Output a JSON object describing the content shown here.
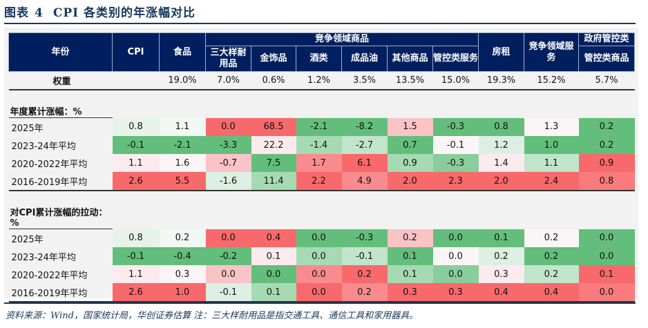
{
  "title": {
    "label": "图表",
    "number": "4",
    "text": "CPI 各类别的年涨幅对比"
  },
  "header": {
    "year": "年份",
    "cpi": "CPI",
    "food": "食品",
    "group_competitive_goods": "竞争领域商品",
    "durables": "三大样耐用品",
    "gold": "金饰品",
    "liquor": "酒类",
    "fuel": "成品油",
    "other_goods": "其他商品",
    "rent": "房租",
    "competitive_services": "竞争领域服务",
    "group_government": "政府管控类",
    "controlled_services": "管控类服务",
    "controlled_goods": "管控类商品"
  },
  "weight": {
    "label": "权重",
    "values": [
      "",
      "19.0%",
      "7.0%",
      "0.6%",
      "1.2%",
      "3.5%",
      "13.5%",
      "15.0%",
      "19.3%",
      "15.2%",
      "5.7%"
    ]
  },
  "sections": [
    {
      "label": "年度累计涨幅：%",
      "rows": [
        {
          "label": "2025年",
          "values": [
            "0.8",
            "1.1",
            "0.0",
            "68.5",
            "-2.1",
            "-8.2",
            "1.5",
            "-0.3",
            "0.8",
            "1.3",
            "0.2"
          ],
          "colors": [
            "g6",
            "g7",
            "R",
            "R",
            "G",
            "G",
            "p2",
            "G",
            "G",
            "w",
            "G"
          ]
        },
        {
          "label": "2023-24年平均",
          "values": [
            "-0.1",
            "-2.1",
            "-3.3",
            "22.2",
            "-1.4",
            "-2.7",
            "0.7",
            "-0.1",
            "1.2",
            "1.0",
            "0.2"
          ],
          "colors": [
            "G",
            "G",
            "G",
            "p1",
            "g3",
            "g4",
            "G",
            "w",
            "g5",
            "G",
            "G"
          ]
        },
        {
          "label": "2020-2022年平均",
          "values": [
            "1.1",
            "1.6",
            "-0.7",
            "7.5",
            "1.7",
            "6.1",
            "0.9",
            "-0.3",
            "1.4",
            "1.1",
            "0.9"
          ],
          "colors": [
            "p1",
            "w",
            "p2",
            "G",
            "r2",
            "R",
            "g3",
            "g2",
            "p1",
            "g4",
            "R"
          ]
        },
        {
          "label": "2016-2019年平均",
          "values": [
            "2.6",
            "5.5",
            "-1.6",
            "11.4",
            "2.2",
            "4.9",
            "2.0",
            "2.3",
            "2.0",
            "2.4",
            "0.8"
          ],
          "colors": [
            "R",
            "R",
            "g5",
            "g3",
            "R",
            "r2",
            "R",
            "R",
            "R",
            "R",
            "r3"
          ]
        }
      ]
    },
    {
      "label": "对CPI累计涨幅的拉动：%",
      "rows": [
        {
          "label": "2025年",
          "values": [
            "0.8",
            "0.2",
            "0.0",
            "0.4",
            "0.0",
            "-0.3",
            "0.2",
            "0.0",
            "0.1",
            "0.2",
            "0.0"
          ],
          "colors": [
            "g6",
            "g7",
            "R",
            "R",
            "G",
            "G",
            "p2",
            "G",
            "G",
            "w",
            "G"
          ]
        },
        {
          "label": "2023-24年平均",
          "values": [
            "-0.1",
            "-0.4",
            "-0.2",
            "0.1",
            "0.0",
            "-0.1",
            "0.1",
            "0.0",
            "0.2",
            "0.2",
            "0.0"
          ],
          "colors": [
            "G",
            "G",
            "G",
            "p1",
            "g3",
            "g4",
            "G",
            "w",
            "g5",
            "G",
            "G"
          ]
        },
        {
          "label": "2020-2022年平均",
          "values": [
            "1.1",
            "0.3",
            "0.0",
            "0.0",
            "0.0",
            "0.2",
            "0.1",
            "0.0",
            "0.3",
            "0.2",
            "0.1"
          ],
          "colors": [
            "p1",
            "w",
            "p2",
            "G",
            "r2",
            "R",
            "g3",
            "g2",
            "p1",
            "g4",
            "R"
          ]
        },
        {
          "label": "2016-2019年平均",
          "values": [
            "2.6",
            "1.0",
            "-0.1",
            "0.1",
            "0.0",
            "0.2",
            "0.3",
            "0.3",
            "0.4",
            "0.4",
            "0.0"
          ],
          "colors": [
            "R",
            "R",
            "g5",
            "g3",
            "R",
            "r2",
            "R",
            "R",
            "R",
            "R",
            "r3"
          ]
        }
      ]
    }
  ],
  "colors": {
    "header_bg": "#001f5f",
    "title": "#17375e",
    "panel_bg": "#f2f2f2",
    "green": "#63be7b",
    "red": "#f8696b"
  },
  "footer": "资料来源：Wind，国家统计局，华创证券估算 注：三大样耐用品是指交通工具、通信工具和家用器具。"
}
